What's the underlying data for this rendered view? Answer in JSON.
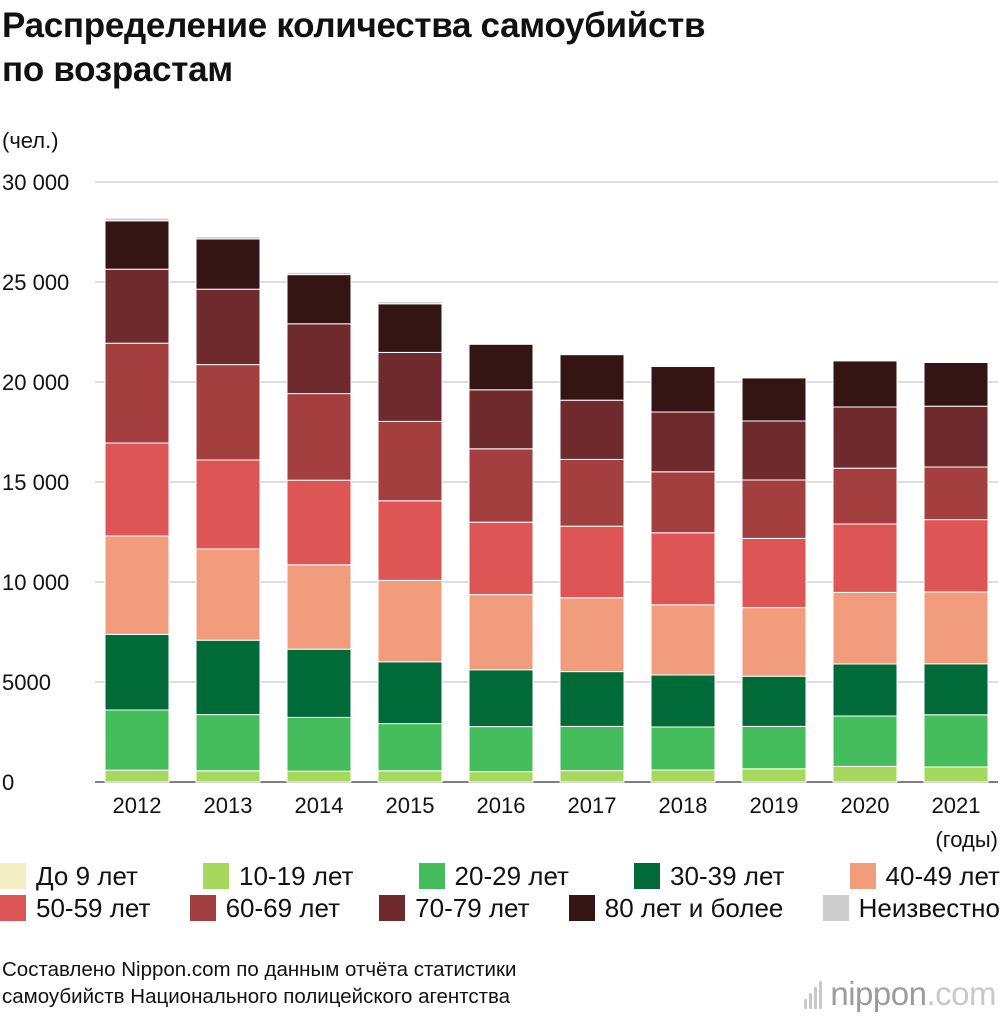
{
  "title_lines": [
    "Распределение количества самоубийств",
    "по возрастам"
  ],
  "unit_label": "(чел.)",
  "source_lines": [
    "Составлено Nippon.com по данным отчёта статистики",
    "самоубийств Национального полицейского агентства"
  ],
  "logo": {
    "name": "nippon",
    "domain": ".com"
  },
  "chart_data": {
    "type": "bar",
    "stacked": true,
    "title": "Распределение количества самоубийств по возрастам",
    "ylabel": "(чел.)",
    "xlabel": "(годы)",
    "ylim": [
      0,
      30000
    ],
    "yticks": [
      0,
      5000,
      10000,
      15000,
      20000,
      25000,
      30000
    ],
    "ytick_labels": [
      "0",
      "5000",
      "10 000",
      "15 000",
      "20 000",
      "25 000",
      "30 000"
    ],
    "grid": "horizontal",
    "legend_position": "bottom",
    "categories": [
      "2012",
      "2013",
      "2014",
      "2015",
      "2016",
      "2017",
      "2018",
      "2019",
      "2020",
      "2021"
    ],
    "series": [
      {
        "name": "До 9 лет",
        "color": "#f4efc3",
        "values": [
          0,
          0,
          0,
          0,
          0,
          0,
          0,
          0,
          0,
          0
        ]
      },
      {
        "name": "10-19 лет",
        "color": "#a6d85e",
        "values": [
          590,
          560,
          540,
          560,
          520,
          570,
          600,
          660,
          780,
          750
        ]
      },
      {
        "name": "20-29 лет",
        "color": "#46bd5c",
        "values": [
          3010,
          2810,
          2690,
          2360,
          2250,
          2210,
          2150,
          2120,
          2520,
          2610
        ]
      },
      {
        "name": "30-39 лет",
        "color": "#006b38",
        "values": [
          3780,
          3720,
          3410,
          3090,
          2840,
          2740,
          2600,
          2510,
          2600,
          2550
        ]
      },
      {
        "name": "40-49 лет",
        "color": "#f19d7d",
        "values": [
          4920,
          4560,
          4220,
          4070,
          3760,
          3690,
          3510,
          3430,
          3580,
          3590
        ]
      },
      {
        "name": "50-59 лет",
        "color": "#de5555",
        "values": [
          4650,
          4450,
          4230,
          3980,
          3620,
          3580,
          3600,
          3460,
          3420,
          3620
        ]
      },
      {
        "name": "60-69 лет",
        "color": "#a33f3f",
        "values": [
          4990,
          4770,
          4330,
          3970,
          3670,
          3340,
          3050,
          2920,
          2790,
          2630
        ]
      },
      {
        "name": "70-79 лет",
        "color": "#6e2a2c",
        "values": [
          3700,
          3770,
          3490,
          3450,
          2950,
          2960,
          2990,
          2950,
          3060,
          3040
        ]
      },
      {
        "name": "80 лет и более",
        "color": "#351513",
        "values": [
          2420,
          2510,
          2460,
          2430,
          2280,
          2280,
          2280,
          2160,
          2310,
          2190
        ]
      },
      {
        "name": "Неизвестно",
        "color": "#cdcdcd",
        "values": [
          140,
          120,
          110,
          110,
          50,
          50,
          60,
          40,
          30,
          50
        ]
      }
    ],
    "legend_rows": [
      [
        "До 9 лет",
        "10-19 лет",
        "20-29 лет",
        "30-39 лет",
        "40-49 лет"
      ],
      [
        "50-59 лет",
        "60-69 лет",
        "70-79 лет",
        "80 лет и более",
        "Неизвестно"
      ]
    ]
  }
}
